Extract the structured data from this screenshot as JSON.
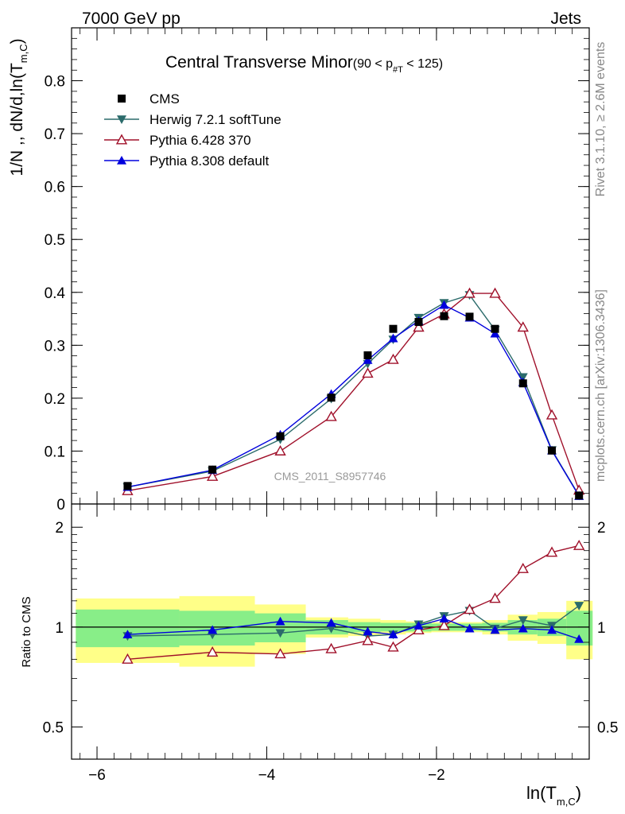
{
  "header": {
    "left": "7000 GeV pp",
    "right": "Jets"
  },
  "side_labels": {
    "rivet": "Rivet 3.1.10, ≥ 2.6M events",
    "mcplots": "mcplots.cern.ch [arXiv:1306.3436]"
  },
  "watermark": "CMS_2011_S8957746",
  "title": {
    "main": "Central Transverse Minor",
    "cut_pre": "(90 < p",
    "cut_sub": "#T",
    "cut_post": " < 125)"
  },
  "axes": {
    "ylabel_pre": "1/N ,, dN/d,ln(T",
    "ylabel_sub": "m,C",
    "ylabel_post": ")",
    "ratio_ylabel": "Ratio to CMS",
    "xlabel_pre": "ln(T",
    "xlabel_sub": "m,C",
    "xlabel_post": ")"
  },
  "legend": [
    {
      "label": "CMS",
      "color": "#000000",
      "marker": "square"
    },
    {
      "label": "Herwig 7.2.1 softTune",
      "color": "#2b6b6b",
      "marker": "triangle-down"
    },
    {
      "label": "Pythia 6.428 370",
      "color": "#a0102a",
      "marker": "triangle-open"
    },
    {
      "label": "Pythia 8.308 default",
      "color": "#0000dd",
      "marker": "triangle-up"
    }
  ],
  "chart_data": [
    {
      "type": "line",
      "title": "Central Transverse Minor (90 < p_T < 125)",
      "xlim": [
        -6.3,
        -0.2
      ],
      "ylim": [
        0,
        0.9
      ],
      "x_ticks": [
        -6,
        -4,
        -2
      ],
      "x_tick_labels": [
        "−6",
        "−4",
        "−2"
      ],
      "y_ticks": [
        0,
        0.1,
        0.2,
        0.3,
        0.4,
        0.5,
        0.6,
        0.7,
        0.8
      ],
      "y_tick_labels": [
        "0",
        "0.1",
        "0.2",
        "0.3",
        "0.4",
        "0.5",
        "0.6",
        "0.7",
        "0.8"
      ],
      "x": [
        -5.64,
        -4.64,
        -3.84,
        -3.24,
        -2.81,
        -2.51,
        -2.21,
        -1.91,
        -1.61,
        -1.31,
        -0.98,
        -0.64,
        -0.32
      ],
      "series": [
        {
          "name": "CMS",
          "color": "#000000",
          "marker": "square",
          "values": [
            0.034,
            0.065,
            0.128,
            0.201,
            0.281,
            0.331,
            0.344,
            0.355,
            0.354,
            0.331,
            0.228,
            0.101,
            0.016
          ]
        },
        {
          "name": "Herwig 7.2.1 softTune",
          "color": "#2b6b6b",
          "marker": "triangle-down",
          "values": [
            0.032,
            0.062,
            0.122,
            0.199,
            0.265,
            0.311,
            0.352,
            0.38,
            0.395,
            0.329,
            0.24,
            0.102,
            0.016
          ]
        },
        {
          "name": "Pythia 6.428 370",
          "color": "#a0102a",
          "marker": "triangle-open",
          "values": [
            0.025,
            0.052,
            0.1,
            0.165,
            0.247,
            0.273,
            0.334,
            0.359,
            0.398,
            0.398,
            0.334,
            0.168,
            0.026
          ]
        },
        {
          "name": "Pythia 8.308 default",
          "color": "#0000dd",
          "marker": "triangle-up",
          "values": [
            0.032,
            0.064,
            0.131,
            0.208,
            0.272,
            0.313,
            0.346,
            0.376,
            0.352,
            0.322,
            0.23,
            0.101,
            0.015
          ]
        }
      ]
    },
    {
      "type": "line",
      "ylabel": "Ratio to CMS",
      "log_y": true,
      "xlim": [
        -6.3,
        -0.2
      ],
      "ylim": [
        0.4,
        2.35
      ],
      "y_ticks": [
        0.5,
        1,
        2
      ],
      "y_tick_labels": [
        "0.5",
        "1",
        "2"
      ],
      "x": [
        -5.64,
        -4.64,
        -3.84,
        -3.24,
        -2.81,
        -2.51,
        -2.21,
        -1.91,
        -1.61,
        -1.31,
        -0.98,
        -0.64,
        -0.32
      ],
      "bin_edges": [
        -6.25,
        -5.03,
        -4.14,
        -3.54,
        -3.04,
        -2.66,
        -2.36,
        -2.06,
        -1.76,
        -1.46,
        -1.16,
        -0.81,
        -0.47,
        -0.16
      ],
      "band_stat": [
        0.13,
        0.12,
        0.1,
        0.05,
        0.035,
        0.03,
        0.03,
        0.025,
        0.025,
        0.03,
        0.05,
        0.06,
        0.12
      ],
      "band_total": [
        0.22,
        0.24,
        0.17,
        0.07,
        0.06,
        0.05,
        0.04,
        0.035,
        0.035,
        0.05,
        0.09,
        0.11,
        0.2
      ],
      "series": [
        {
          "name": "Herwig 7.2.1 softTune",
          "color": "#2b6b6b",
          "marker": "triangle-down",
          "values": [
            0.94,
            0.95,
            0.96,
            0.99,
            0.94,
            0.95,
            1.02,
            1.08,
            1.12,
            0.99,
            1.05,
            1.01,
            1.16
          ]
        },
        {
          "name": "Pythia 6.428 370",
          "color": "#a0102a",
          "marker": "triangle-open",
          "values": [
            0.8,
            0.84,
            0.83,
            0.86,
            0.91,
            0.87,
            0.98,
            1.01,
            1.13,
            1.22,
            1.5,
            1.68,
            1.76
          ]
        },
        {
          "name": "Pythia 8.308 default",
          "color": "#0000dd",
          "marker": "triangle-up",
          "values": [
            0.95,
            0.98,
            1.04,
            1.03,
            0.97,
            0.95,
            1.01,
            1.06,
            0.99,
            0.98,
            0.99,
            0.98,
            0.92
          ]
        }
      ]
    }
  ]
}
